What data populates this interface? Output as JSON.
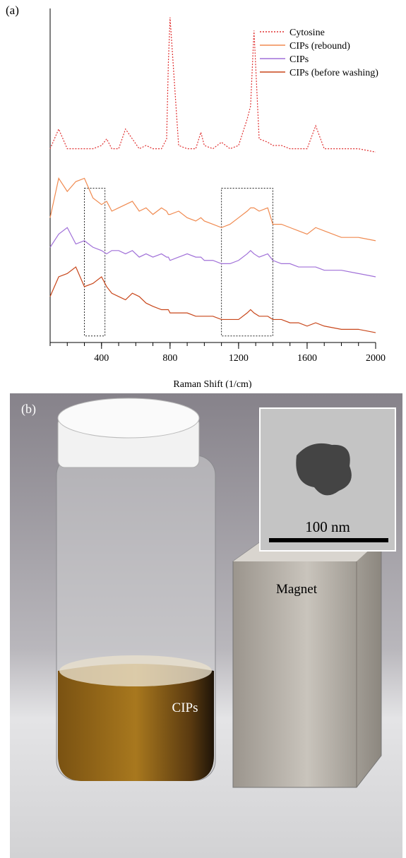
{
  "chart_data": {
    "type": "line",
    "panel_label": "(a)",
    "x_label": "Raman Shift (1/cm)",
    "x": [
      100,
      150,
      200,
      250,
      300,
      350,
      400,
      430,
      460,
      500,
      540,
      580,
      620,
      660,
      700,
      750,
      780,
      790,
      800,
      850,
      900,
      950,
      980,
      1000,
      1050,
      1100,
      1150,
      1200,
      1250,
      1270,
      1290,
      1320,
      1370,
      1400,
      1450,
      1500,
      1550,
      1600,
      1650,
      1700,
      1800,
      1900,
      2000
    ],
    "series": [
      {
        "name": "Cytosine",
        "color": "#e03030",
        "dashed": true,
        "values": [
          59,
          65,
          59,
          59,
          59,
          59,
          60,
          62,
          59,
          59,
          65,
          62,
          59,
          60,
          59,
          59,
          62,
          85,
          99,
          60,
          59,
          59,
          64,
          60,
          59,
          61,
          59,
          60,
          68,
          72,
          95,
          62,
          61,
          60,
          60,
          59,
          59,
          59,
          66,
          59,
          59,
          59,
          58
        ]
      },
      {
        "name": "CIPs (rebound)",
        "color": "#f08a50",
        "dashed": false,
        "values": [
          38,
          50,
          46,
          49,
          50,
          44,
          42,
          43,
          40,
          41,
          42,
          43,
          40,
          41,
          39,
          41,
          40,
          39,
          39,
          40,
          38,
          37,
          38,
          37,
          36,
          35,
          36,
          38,
          40,
          41,
          41,
          40,
          41,
          36,
          36,
          35,
          34,
          33,
          35,
          34,
          32,
          32,
          31
        ]
      },
      {
        "name": "CIPs",
        "color": "#a070d8",
        "dashed": false,
        "values": [
          29,
          33,
          35,
          30,
          31,
          29,
          28,
          27,
          28,
          28,
          27,
          28,
          26,
          27,
          26,
          27,
          26,
          26,
          25,
          26,
          27,
          26,
          26,
          25,
          25,
          24,
          24,
          25,
          27,
          28,
          27,
          26,
          27,
          25,
          24,
          24,
          23,
          23,
          23,
          22,
          22,
          21,
          20
        ]
      },
      {
        "name": "CIPs (before washing)",
        "color": "#c8461a",
        "dashed": false,
        "values": [
          14,
          20,
          21,
          23,
          17,
          18,
          20,
          17,
          15,
          14,
          13,
          15,
          14,
          12,
          11,
          10,
          10,
          10,
          9,
          9,
          9,
          8,
          8,
          8,
          8,
          7,
          7,
          7,
          9,
          10,
          9,
          8,
          8,
          7,
          7,
          6,
          6,
          5,
          6,
          5,
          4,
          4,
          3
        ]
      }
    ],
    "xlim": [
      100,
      2000
    ],
    "ylim": [
      0,
      100
    ],
    "xticks": [
      400,
      800,
      1200,
      1600,
      2000
    ],
    "xminorticks": [
      100,
      200,
      300,
      400,
      500,
      600,
      700,
      800,
      900,
      1000,
      1100,
      1200,
      1300,
      1400,
      1500,
      1600,
      1700,
      1800,
      1900,
      2000
    ],
    "highlight_regions": [
      {
        "x": [
          300,
          420
        ],
        "y": [
          2,
          47
        ]
      },
      {
        "x": [
          1100,
          1400
        ],
        "y": [
          2,
          47
        ]
      }
    ],
    "legend": "upper right"
  },
  "photo": {
    "panel_label": "(b)",
    "scale_bar": "100 nm",
    "magnet_label": "Magnet",
    "vial_label": "CIPs"
  }
}
